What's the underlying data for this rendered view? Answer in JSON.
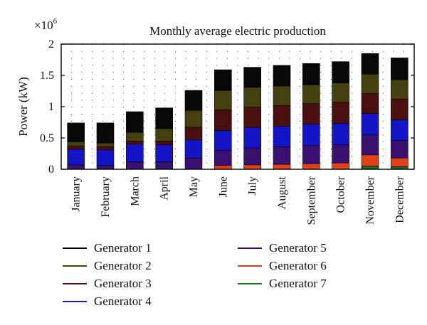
{
  "chart_data": {
    "type": "bar",
    "stacked": true,
    "title": "Monthly average electric production",
    "ylabel": "Power (kW)",
    "y_scale_label": "×10",
    "y_scale_exponent": "6",
    "ylim": [
      0,
      2
    ],
    "yticks": [
      "0",
      "0.5",
      "1",
      "1.5",
      "2"
    ],
    "grid": "dotted",
    "legend_position": "bottom",
    "categories": [
      "January",
      "February",
      "March",
      "April",
      "May",
      "June",
      "July",
      "August",
      "September",
      "October",
      "November",
      "December"
    ],
    "series": [
      {
        "name": "Generator 7",
        "color": "#1a6e1a",
        "values": [
          0.0,
          0.0,
          0.0,
          0.0,
          0.0,
          0.0,
          0.0,
          0.0,
          0.0,
          0.0,
          0.05,
          0.04
        ]
      },
      {
        "name": "Generator 6",
        "color": "#e0401a",
        "values": [
          0.0,
          0.0,
          0.0,
          0.0,
          0.0,
          0.06,
          0.07,
          0.08,
          0.09,
          0.1,
          0.18,
          0.14
        ]
      },
      {
        "name": "Generator 5",
        "color": "#3a1070",
        "values": [
          0.07,
          0.06,
          0.12,
          0.12,
          0.18,
          0.24,
          0.27,
          0.28,
          0.29,
          0.29,
          0.32,
          0.28
        ]
      },
      {
        "name": "Generator 4",
        "color": "#1515c8",
        "values": [
          0.25,
          0.25,
          0.28,
          0.27,
          0.29,
          0.32,
          0.33,
          0.33,
          0.34,
          0.34,
          0.34,
          0.33
        ]
      },
      {
        "name": "Generator 3",
        "color": "#4a1010",
        "values": [
          0.05,
          0.05,
          0.05,
          0.06,
          0.2,
          0.33,
          0.32,
          0.33,
          0.33,
          0.34,
          0.32,
          0.33
        ]
      },
      {
        "name": "Generator 2",
        "color": "#444010",
        "values": [
          0.07,
          0.06,
          0.14,
          0.2,
          0.27,
          0.31,
          0.32,
          0.31,
          0.3,
          0.31,
          0.31,
          0.31
        ]
      },
      {
        "name": "Generator 1",
        "color": "#080808",
        "values": [
          0.3,
          0.32,
          0.33,
          0.33,
          0.32,
          0.33,
          0.32,
          0.33,
          0.34,
          0.34,
          0.33,
          0.35
        ]
      }
    ],
    "legend": [
      {
        "name": "Generator 1",
        "color": "#080808"
      },
      {
        "name": "Generator 2",
        "color": "#444010"
      },
      {
        "name": "Generator 3",
        "color": "#4a1010"
      },
      {
        "name": "Generator 4",
        "color": "#1515c8"
      },
      {
        "name": "Generator 5",
        "color": "#3a1070"
      },
      {
        "name": "Generator 6",
        "color": "#e0401a"
      },
      {
        "name": "Generator 7",
        "color": "#1a6e1a"
      }
    ]
  }
}
